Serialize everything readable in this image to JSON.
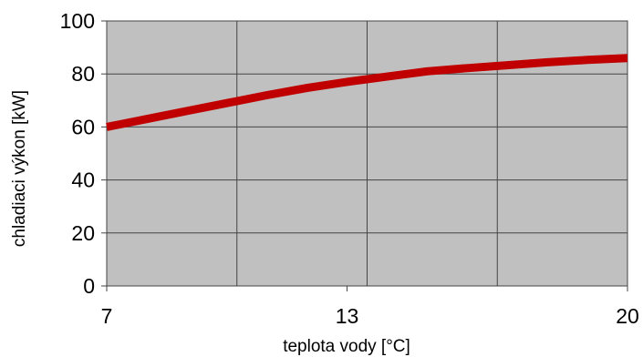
{
  "chart_data": {
    "type": "line",
    "xlabel": "teplota vody [°C]",
    "ylabel": "chladiaci výkon [kW]",
    "xlim": [
      7,
      20
    ],
    "ylim": [
      0,
      100
    ],
    "x_tick_labels": [
      "7",
      "13",
      "20"
    ],
    "y_tick_labels": [
      "0",
      "20",
      "40",
      "60",
      "80",
      "100"
    ],
    "grid": true,
    "colors": {
      "line": "#c00000",
      "plot_background": "#c0c0c0",
      "grid": "#444444"
    },
    "series": [
      {
        "x": [
          7,
          8,
          9,
          10,
          11,
          12,
          13,
          14,
          15,
          16,
          17,
          18,
          19,
          20
        ],
        "values": [
          60,
          63,
          66,
          69,
          72,
          74.7,
          77,
          79,
          81,
          82.2,
          83.3,
          84.4,
          85.3,
          86
        ]
      }
    ]
  }
}
